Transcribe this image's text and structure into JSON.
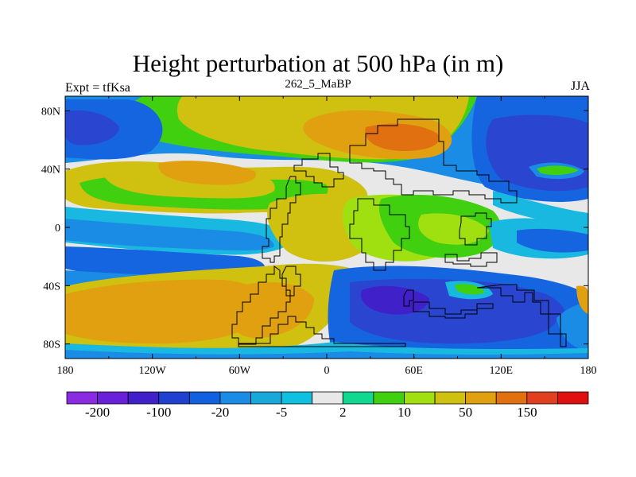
{
  "title": "Height perturbation at 500 hPa (in m)",
  "subtitle_left": "Expt = tfKsa",
  "subtitle_center": "262_5_MaBP",
  "subtitle_right": "JJA",
  "axes": {
    "x_ticks": [
      "180",
      "120W",
      "60W",
      "0",
      "60E",
      "120E",
      "180"
    ],
    "y_ticks": [
      "80N",
      "40N",
      "0",
      "40S",
      "80S"
    ]
  },
  "colorbar": {
    "colors": [
      "#8a2be2",
      "#6a1fd8",
      "#4020c8",
      "#2040d0",
      "#1060e0",
      "#1a8ce6",
      "#18a8da",
      "#10c0e0",
      "#e8e8e8",
      "#10d890",
      "#40d010",
      "#a0e010",
      "#d0c010",
      "#e0a010",
      "#e07010",
      "#e04020",
      "#e01010"
    ],
    "labels": [
      "-200",
      "-100",
      "-20",
      "-5",
      "2",
      "10",
      "50",
      "150"
    ]
  },
  "region_colors": {
    "background": "#e8e8e8",
    "deep_blue": "#2a46d0",
    "mid_blue": "#1565e0",
    "light_blue": "#1a8ce6",
    "cyan": "#18b8e0",
    "green": "#40d010",
    "lime": "#a0e010",
    "yellow": "#d0c010",
    "orange": "#e0a010",
    "dark_orange": "#e07010",
    "red_orange": "#e05020",
    "teal": "#10d890"
  }
}
